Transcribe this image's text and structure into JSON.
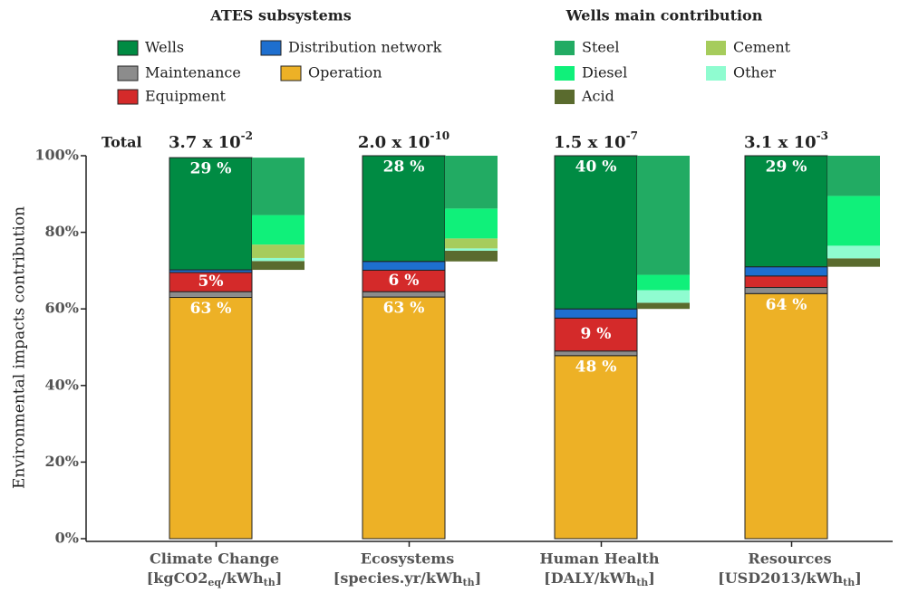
{
  "chart_data": {
    "type": "stacked_bar",
    "ylabel": "Environmental impacts contribution",
    "ylim": [
      0,
      100
    ],
    "yticks": [
      {
        "value": 0,
        "label": "0%"
      },
      {
        "value": 20,
        "label": "20%"
      },
      {
        "value": 40,
        "label": "40%"
      },
      {
        "value": 60,
        "label": "60%"
      },
      {
        "value": 80,
        "label": "80%"
      },
      {
        "value": 100,
        "label": "100%"
      }
    ],
    "categories": [
      "Climate Change",
      "Ecosystems",
      "Human Health",
      "Resources"
    ],
    "units": [
      [
        "[kgCO2",
        "eq",
        "/kWh",
        "th",
        "]"
      ],
      [
        "[species.yr/kWh",
        "th",
        "]"
      ],
      [
        "[DALY/kWh",
        "th",
        "]"
      ],
      [
        "[USD2013/kWh",
        "th",
        "]"
      ]
    ],
    "totals_label": "Total",
    "totals": [
      {
        "base": "3.7 x 10",
        "exponent": "-2"
      },
      {
        "base": "2.0 x 10",
        "exponent": "-10"
      },
      {
        "base": "1.5 x 10",
        "exponent": "-7"
      },
      {
        "base": "3.1 x 10",
        "exponent": "-3"
      }
    ],
    "legend_title": "ATES subsystems",
    "series": [
      {
        "name": "Operation",
        "color": "#edb126",
        "values": [
          63.0,
          63.1,
          47.8,
          64.0
        ],
        "value_labels": [
          "63 %",
          "63 %",
          "48 %",
          "64 %"
        ]
      },
      {
        "name": "Maintenance",
        "color": "#8c8c8c",
        "values": [
          1.5,
          1.4,
          1.2,
          1.6
        ]
      },
      {
        "name": "Equipment",
        "color": "#d42a2a",
        "values": [
          5.0,
          5.6,
          8.6,
          3.0
        ],
        "value_labels": [
          "5%",
          "6 %",
          "9 %",
          null
        ]
      },
      {
        "name": "Distribution network",
        "color": "#1e6fcf",
        "values": [
          0.7,
          2.3,
          2.4,
          2.4
        ]
      },
      {
        "name": "Wells",
        "color": "#008b43",
        "values": [
          29.3,
          27.6,
          40.0,
          29.0
        ],
        "value_labels": [
          "29 %",
          "28 %",
          "40 %",
          "29 %"
        ]
      }
    ],
    "breakdown_legend_title": "Wells main contribution",
    "breakdown_series": [
      {
        "name": "Acid",
        "color": "#5a6b2e",
        "values": [
          2.3,
          2.8,
          1.6,
          2.2
        ]
      },
      {
        "name": "Other",
        "color": "#8ffcd0",
        "values": [
          0.8,
          0.6,
          3.3,
          3.3
        ]
      },
      {
        "name": "Cement",
        "color": "#a6cc5c",
        "values": [
          3.5,
          2.6,
          0,
          0
        ]
      },
      {
        "name": "Diesel",
        "color": "#10f07a",
        "values": [
          7.7,
          7.8,
          4.0,
          13.0
        ]
      },
      {
        "name": "Steel",
        "color": "#22ab63",
        "values": [
          15.0,
          13.8,
          31.1,
          10.5
        ]
      }
    ]
  }
}
